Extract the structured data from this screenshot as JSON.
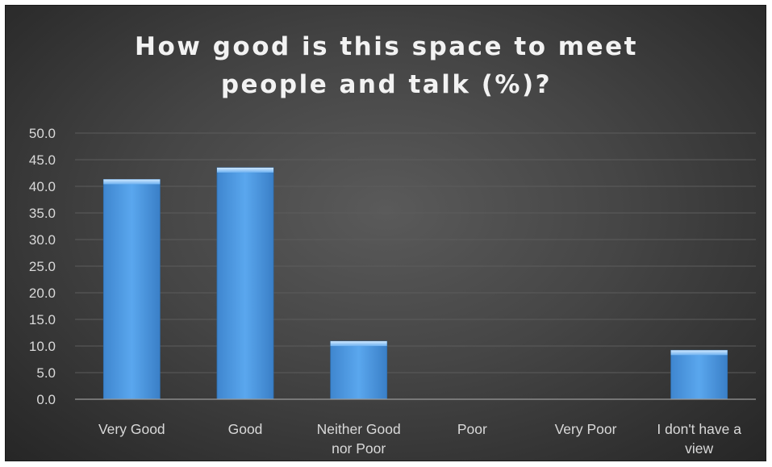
{
  "chart_data": {
    "type": "bar",
    "title_lines": [
      "How good is this space to meet",
      "people and talk (%)?"
    ],
    "xlabel": "",
    "ylabel": "",
    "categories": [
      [
        "Very Good"
      ],
      [
        "Good"
      ],
      [
        "Neither Good",
        "nor Poor"
      ],
      [
        "Poor"
      ],
      [
        "Very Poor"
      ],
      [
        "I don't have a",
        "view"
      ]
    ],
    "values": [
      41.3,
      43.5,
      10.9,
      0.0,
      0.0,
      9.2
    ],
    "ylim": [
      0,
      50
    ],
    "yticks": [
      "0.0",
      "5.0",
      "10.0",
      "15.0",
      "20.0",
      "25.0",
      "30.0",
      "35.0",
      "40.0",
      "45.0",
      "50.0"
    ],
    "grid": true,
    "legend": "none",
    "colors": {
      "bar": "#4d9be4",
      "bar_top": "#a8d4ff",
      "bar_edge": "#2f6fb0",
      "grid": "#5c5c5c",
      "axis": "#9a9a9a",
      "text": "#d9d9d9",
      "title": "#f2f2f2"
    }
  }
}
